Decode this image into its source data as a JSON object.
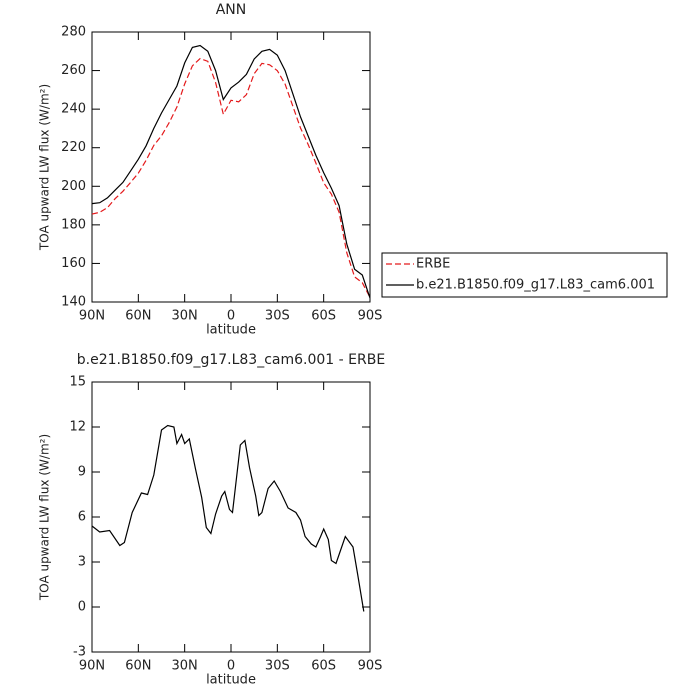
{
  "chart_data": [
    {
      "type": "line",
      "title": "ANN",
      "xlabel": "latitude",
      "ylabel": "TOA upward LW flux (W/m²)",
      "x": [
        90,
        85,
        80,
        75,
        70,
        65,
        60,
        55,
        50,
        45,
        40,
        35,
        30,
        25,
        20,
        15,
        10,
        5,
        0,
        -5,
        -10,
        -15,
        -20,
        -25,
        -30,
        -35,
        -40,
        -45,
        -50,
        -55,
        -60,
        -65,
        -70,
        -75,
        -80,
        -85,
        -90
      ],
      "series": [
        {
          "name": "ERBE",
          "color": "#e41a1c",
          "linestyle": "dashed",
          "values": [
            185.6,
            186.5,
            188.9,
            193.6,
            197.4,
            202,
            206.8,
            213.5,
            221.2,
            226.2,
            233,
            241.1,
            253.1,
            262.5,
            266.2,
            264.8,
            253.8,
            237.4,
            244.6,
            243.8,
            247.5,
            258.4,
            263.7,
            263,
            260,
            253,
            241.6,
            230.2,
            221.6,
            212,
            201.8,
            195.9,
            186.5,
            165.5,
            153,
            150,
            142.4
          ]
        },
        {
          "name": "b.e21.B1850.f09_g17.L83_cam6.001",
          "color": "#000000",
          "linestyle": "solid",
          "values": [
            191,
            191.5,
            194,
            198,
            202,
            208,
            214,
            221,
            230,
            238,
            245,
            252,
            264,
            272,
            273,
            270,
            260,
            245,
            251,
            254,
            258,
            266,
            270,
            271,
            268,
            260,
            248,
            236,
            226,
            216,
            207,
            199,
            190,
            170,
            157,
            154,
            142
          ]
        }
      ],
      "xlim": [
        90,
        -90
      ],
      "xticks": [
        {
          "value": 90,
          "label": "90N"
        },
        {
          "value": 60,
          "label": "60N"
        },
        {
          "value": 30,
          "label": "30N"
        },
        0,
        {
          "value": -30,
          "label": "30S"
        },
        {
          "value": -60,
          "label": "60S"
        },
        {
          "value": -90,
          "label": "90S"
        }
      ],
      "ylim": [
        140,
        280
      ],
      "yticks": [
        140,
        160,
        180,
        200,
        220,
        240,
        260,
        280
      ],
      "legend": "right"
    },
    {
      "type": "line",
      "title": "b.e21.B1850.f09_g17.L83_cam6.001 - ERBE",
      "xlabel": "latitude",
      "ylabel": "TOA upward LW flux (W/m²)",
      "x": [
        90,
        85,
        78.6,
        72,
        69,
        64,
        58,
        54,
        50,
        45,
        41,
        37,
        35,
        32,
        30,
        27,
        23,
        19,
        16,
        13,
        10,
        6,
        4,
        1,
        -1,
        -6,
        -9,
        -12,
        -16,
        -18,
        -20,
        -24,
        -28,
        -32,
        -37,
        -42,
        -45,
        -48,
        -52,
        -55,
        -58,
        -60,
        -63,
        -65,
        -68,
        -70,
        -74,
        -79,
        -82,
        -86
      ],
      "series": [
        {
          "name": "b.e21.B1850.f09_g17.L83_cam6.001 - ERBE",
          "color": "#000000",
          "linestyle": "solid",
          "values": [
            5.4,
            5.0,
            5.1,
            4.1,
            4.3,
            6.3,
            7.6,
            7.5,
            8.8,
            11.8,
            12.1,
            12.0,
            10.9,
            11.5,
            10.9,
            11.2,
            9.2,
            7.3,
            5.3,
            4.9,
            6.2,
            7.4,
            7.7,
            6.5,
            6.3,
            10.8,
            11.1,
            9.3,
            7.4,
            6.1,
            6.3,
            7.9,
            8.4,
            7.7,
            6.6,
            6.3,
            5.8,
            4.7,
            4.2,
            4.0,
            4.7,
            5.2,
            4.5,
            3.1,
            2.9,
            3.5,
            4.7,
            4.0,
            2.2,
            -0.3
          ]
        }
      ],
      "xlim": [
        90,
        -90
      ],
      "xticks": [
        {
          "value": 90,
          "label": "90N"
        },
        {
          "value": 60,
          "label": "60N"
        },
        {
          "value": 30,
          "label": "30N"
        },
        0,
        {
          "value": -30,
          "label": "30S"
        },
        {
          "value": -60,
          "label": "60S"
        },
        {
          "value": -90,
          "label": "90S"
        }
      ],
      "ylim": [
        -3,
        15
      ],
      "yticks": [
        -3,
        0,
        3,
        6,
        9,
        12,
        15
      ]
    }
  ]
}
